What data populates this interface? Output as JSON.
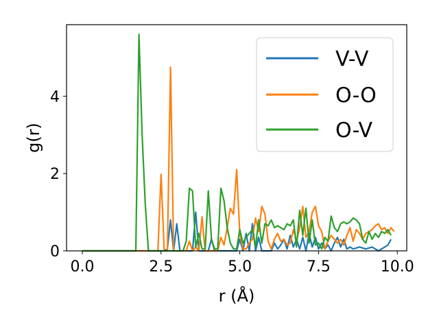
{
  "chart_data": {
    "type": "line",
    "title": "",
    "xlabel": "r (Å)",
    "ylabel": "g(r)",
    "xlim": [
      -0.5,
      10.3
    ],
    "ylim": [
      0,
      5.85
    ],
    "xticks": [
      0.0,
      2.5,
      5.0,
      7.5,
      10.0
    ],
    "xtick_labels": [
      "0.0",
      "2.5",
      "5.0",
      "7.5",
      "10.0"
    ],
    "yticks": [
      0,
      2,
      4
    ],
    "ytick_labels": [
      "0",
      "2",
      "4"
    ],
    "grid": false,
    "legend_position": "upper right",
    "series": [
      {
        "name": "V-V",
        "color": "#1f77b4",
        "points": [
          [
            0,
            0
          ],
          [
            2.6,
            0
          ],
          [
            2.7,
            0.05
          ],
          [
            2.8,
            0.8
          ],
          [
            2.9,
            0
          ],
          [
            3.0,
            0.7
          ],
          [
            3.1,
            0
          ],
          [
            3.5,
            0
          ],
          [
            3.6,
            1.0
          ],
          [
            3.7,
            0
          ],
          [
            4.0,
            0
          ],
          [
            4.1,
            0.3
          ],
          [
            4.2,
            0
          ],
          [
            4.9,
            0
          ],
          [
            5.0,
            0.3
          ],
          [
            5.1,
            0
          ],
          [
            5.2,
            0.45
          ],
          [
            5.3,
            0
          ],
          [
            5.4,
            0.7
          ],
          [
            5.5,
            0
          ],
          [
            5.6,
            0.35
          ],
          [
            5.7,
            0
          ],
          [
            6.0,
            0
          ],
          [
            6.1,
            0.2
          ],
          [
            6.2,
            0.05
          ],
          [
            6.3,
            0.15
          ],
          [
            6.4,
            0.3
          ],
          [
            6.5,
            0.05
          ],
          [
            6.6,
            0.4
          ],
          [
            6.7,
            0.1
          ],
          [
            6.8,
            0.3
          ],
          [
            6.9,
            0.05
          ],
          [
            7.0,
            0.35
          ],
          [
            7.1,
            0
          ],
          [
            7.2,
            0.45
          ],
          [
            7.3,
            0.1
          ],
          [
            7.4,
            0.35
          ],
          [
            7.5,
            0.05
          ],
          [
            7.6,
            0.2
          ],
          [
            7.7,
            0.05
          ],
          [
            7.8,
            0.15
          ],
          [
            7.9,
            0
          ],
          [
            8.0,
            0.2
          ],
          [
            8.1,
            0.35
          ],
          [
            8.2,
            0.1
          ],
          [
            8.3,
            0.3
          ],
          [
            8.4,
            0.05
          ],
          [
            8.5,
            0.1
          ],
          [
            8.6,
            0.05
          ],
          [
            8.8,
            0.1
          ],
          [
            9.0,
            0.05
          ],
          [
            9.2,
            0.1
          ],
          [
            9.4,
            0.0
          ],
          [
            9.6,
            0.1
          ],
          [
            9.7,
            0.15
          ],
          [
            9.8,
            0.3
          ]
        ]
      },
      {
        "name": "O-O",
        "color": "#ff7f0e",
        "points": [
          [
            0,
            0
          ],
          [
            2.4,
            0
          ],
          [
            2.5,
            1.98
          ],
          [
            2.6,
            0
          ],
          [
            2.7,
            0
          ],
          [
            2.8,
            4.75
          ],
          [
            2.9,
            0
          ],
          [
            3.3,
            0
          ],
          [
            3.4,
            0.25
          ],
          [
            3.5,
            0
          ],
          [
            3.6,
            0.1
          ],
          [
            3.7,
            0
          ],
          [
            3.8,
            0.88
          ],
          [
            3.9,
            0
          ],
          [
            4.3,
            0
          ],
          [
            4.4,
            0.35
          ],
          [
            4.5,
            0.15
          ],
          [
            4.6,
            0.6
          ],
          [
            4.7,
            1.1
          ],
          [
            4.8,
            0.95
          ],
          [
            4.9,
            2.1
          ],
          [
            5.0,
            0.45
          ],
          [
            5.1,
            0.05
          ],
          [
            5.2,
            0.05
          ],
          [
            5.3,
            0.2
          ],
          [
            5.4,
            0.3
          ],
          [
            5.5,
            0.85
          ],
          [
            5.6,
            0.5
          ],
          [
            5.7,
            1.15
          ],
          [
            5.8,
            0.95
          ],
          [
            5.9,
            0.25
          ],
          [
            6.0,
            0.05
          ],
          [
            6.1,
            0.3
          ],
          [
            6.2,
            0.45
          ],
          [
            6.3,
            0.25
          ],
          [
            6.4,
            0.3
          ],
          [
            6.5,
            0.15
          ],
          [
            6.6,
            0.2
          ],
          [
            6.7,
            0.55
          ],
          [
            6.8,
            0.25
          ],
          [
            6.9,
            0.6
          ],
          [
            7.0,
            1.15
          ],
          [
            7.1,
            0.35
          ],
          [
            7.2,
            0.5
          ],
          [
            7.3,
            1.0
          ],
          [
            7.4,
            1.15
          ],
          [
            7.5,
            0.65
          ],
          [
            7.6,
            0.5
          ],
          [
            7.7,
            0.05
          ],
          [
            7.8,
            0.25
          ],
          [
            7.9,
            0.4
          ],
          [
            8.0,
            0.3
          ],
          [
            8.1,
            0.2
          ],
          [
            8.2,
            0.3
          ],
          [
            8.3,
            0.15
          ],
          [
            8.4,
            0.4
          ],
          [
            8.5,
            0.6
          ],
          [
            8.6,
            0.25
          ],
          [
            8.7,
            0.55
          ],
          [
            8.8,
            0.45
          ],
          [
            8.9,
            0.3
          ],
          [
            9.0,
            0.45
          ],
          [
            9.1,
            0.5
          ],
          [
            9.2,
            0.55
          ],
          [
            9.3,
            0.65
          ],
          [
            9.4,
            0.7
          ],
          [
            9.5,
            0.55
          ],
          [
            9.6,
            0.6
          ],
          [
            9.7,
            0.45
          ],
          [
            9.8,
            0.6
          ],
          [
            9.9,
            0.5
          ]
        ]
      },
      {
        "name": "O-V",
        "color": "#2ca02c",
        "points": [
          [
            0,
            0
          ],
          [
            1.7,
            0
          ],
          [
            1.8,
            5.6
          ],
          [
            1.9,
            3.0
          ],
          [
            2.0,
            1.2
          ],
          [
            2.1,
            0
          ],
          [
            3.2,
            0
          ],
          [
            3.3,
            0.25
          ],
          [
            3.4,
            1.62
          ],
          [
            3.5,
            1.55
          ],
          [
            3.6,
            0.1
          ],
          [
            3.7,
            0.45
          ],
          [
            3.8,
            0.05
          ],
          [
            3.9,
            0.05
          ],
          [
            4.0,
            1.55
          ],
          [
            4.1,
            0.3
          ],
          [
            4.2,
            0.05
          ],
          [
            4.3,
            0.05
          ],
          [
            4.4,
            1.62
          ],
          [
            4.5,
            1.3
          ],
          [
            4.6,
            0.6
          ],
          [
            4.7,
            0.2
          ],
          [
            4.8,
            0.05
          ],
          [
            4.9,
            0.05
          ],
          [
            5.0,
            0.55
          ],
          [
            5.1,
            0.2
          ],
          [
            5.2,
            0.35
          ],
          [
            5.3,
            0.45
          ],
          [
            5.4,
            0.55
          ],
          [
            5.5,
            0.1
          ],
          [
            5.6,
            0.8
          ],
          [
            5.7,
            0.2
          ],
          [
            5.8,
            0.7
          ],
          [
            5.9,
            0.65
          ],
          [
            6.0,
            0.8
          ],
          [
            6.1,
            0.6
          ],
          [
            6.2,
            0.65
          ],
          [
            6.3,
            0.6
          ],
          [
            6.4,
            0.55
          ],
          [
            6.5,
            0.7
          ],
          [
            6.6,
            0.65
          ],
          [
            6.7,
            0.8
          ],
          [
            6.8,
            0.1
          ],
          [
            6.9,
            1.05
          ],
          [
            7.0,
            0.4
          ],
          [
            7.1,
            1.1
          ],
          [
            7.2,
            0.2
          ],
          [
            7.3,
            0.8
          ],
          [
            7.4,
            0.15
          ],
          [
            7.5,
            0.2
          ],
          [
            7.6,
            0.05
          ],
          [
            7.7,
            0.35
          ],
          [
            7.8,
            0.25
          ],
          [
            7.9,
            0.9
          ],
          [
            8.0,
            0.6
          ],
          [
            8.1,
            0.5
          ],
          [
            8.2,
            0.7
          ],
          [
            8.3,
            0.75
          ],
          [
            8.4,
            0.7
          ],
          [
            8.5,
            0.75
          ],
          [
            8.6,
            0.85
          ],
          [
            8.7,
            0.8
          ],
          [
            8.8,
            0.7
          ],
          [
            8.9,
            0.3
          ],
          [
            9.0,
            0.2
          ],
          [
            9.1,
            0.5
          ],
          [
            9.2,
            0.3
          ],
          [
            9.3,
            0.45
          ],
          [
            9.4,
            0.35
          ],
          [
            9.5,
            0.5
          ],
          [
            9.6,
            0.45
          ],
          [
            9.7,
            0.55
          ],
          [
            9.8,
            0.4
          ]
        ]
      }
    ]
  }
}
